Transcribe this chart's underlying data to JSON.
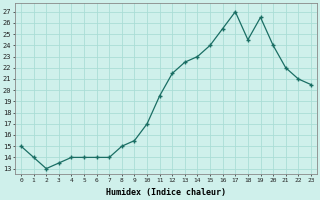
{
  "hours": [
    0,
    1,
    2,
    3,
    4,
    5,
    6,
    7,
    8,
    9,
    10,
    11,
    12,
    13,
    14,
    15,
    16,
    17,
    18,
    19,
    20,
    21,
    22,
    23
  ],
  "humidex": [
    15,
    14,
    13,
    13.5,
    14,
    14,
    14,
    14,
    15,
    15.5,
    17,
    19.5,
    21.5,
    22.5,
    23,
    24,
    25.5,
    27,
    24.5,
    26.5,
    24,
    22,
    21,
    20.5
  ],
  "line_color": "#1a6e64",
  "marker_color": "#1a6e64",
  "bg_color": "#cff0eb",
  "grid_color": "#aaddd6",
  "xlabel": "Humidex (Indice chaleur)",
  "ytick_labels": [
    "13",
    "14",
    "15",
    "16",
    "17",
    "18",
    "19",
    "20",
    "21",
    "22",
    "23",
    "24",
    "25",
    "26",
    "27"
  ],
  "ytick_vals": [
    13,
    14,
    15,
    16,
    17,
    18,
    19,
    20,
    21,
    22,
    23,
    24,
    25,
    26,
    27
  ],
  "ylim": [
    12.5,
    27.8
  ],
  "xlim": [
    -0.5,
    23.5
  ]
}
